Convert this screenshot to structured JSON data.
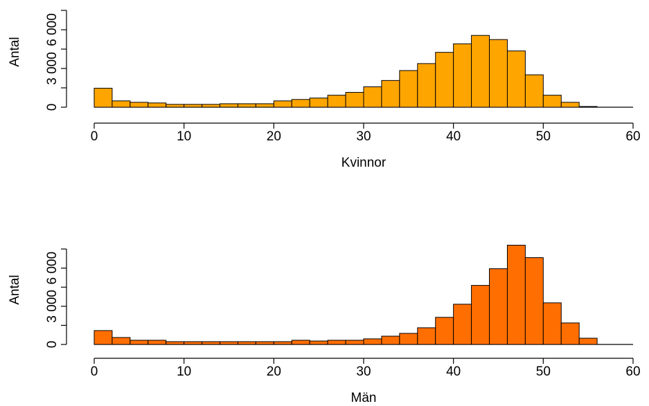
{
  "chart_data": [
    {
      "type": "histogram",
      "xlabel": "Kvinnor",
      "ylabel": "Antal",
      "color": "#ffa500",
      "bins": [
        0,
        2,
        4,
        6,
        8,
        10,
        12,
        14,
        16,
        18,
        20,
        22,
        24,
        26,
        28,
        30,
        32,
        34,
        36,
        38,
        40,
        42,
        44,
        46,
        48,
        50,
        52,
        54,
        56
      ],
      "values": [
        1470,
        490,
        380,
        330,
        220,
        220,
        220,
        270,
        270,
        270,
        490,
        600,
        710,
        930,
        1150,
        1580,
        2070,
        2840,
        3380,
        4250,
        4910,
        5560,
        5240,
        4360,
        2510,
        930,
        380,
        55
      ],
      "xlim": [
        0,
        60
      ],
      "xticks": [
        0,
        10,
        20,
        30,
        40,
        50,
        60
      ],
      "ylim": [
        0,
        7500
      ],
      "yticks": [
        0,
        {
          "value": 3000,
          "label": "3 000"
        },
        {
          "value": 6000,
          "label": "6 000"
        }
      ],
      "yticks_minor": [
        1500,
        4500,
        7500
      ]
    },
    {
      "type": "histogram",
      "xlabel": "Män",
      "ylabel": "Antal",
      "color": "#ff6e00",
      "bins": [
        0,
        2,
        4,
        6,
        8,
        10,
        12,
        14,
        16,
        18,
        20,
        22,
        24,
        26,
        28,
        30,
        32,
        34,
        36,
        38,
        40,
        42,
        44,
        46,
        48,
        50,
        52,
        54,
        56
      ],
      "values": [
        1090,
        545,
        330,
        330,
        220,
        220,
        220,
        220,
        220,
        220,
        220,
        330,
        270,
        330,
        330,
        440,
        650,
        870,
        1310,
        2130,
        3160,
        4640,
        5950,
        7800,
        6820,
        3270,
        1690,
        490
      ],
      "xlim": [
        0,
        60
      ],
      "xticks": [
        0,
        10,
        20,
        30,
        40,
        50,
        60
      ],
      "ylim": [
        0,
        7500
      ],
      "yticks": [
        0,
        {
          "value": 3000,
          "label": "3 000"
        },
        {
          "value": 6000,
          "label": "6 000"
        }
      ],
      "yticks_minor": [
        1500,
        4500,
        7500
      ]
    }
  ]
}
